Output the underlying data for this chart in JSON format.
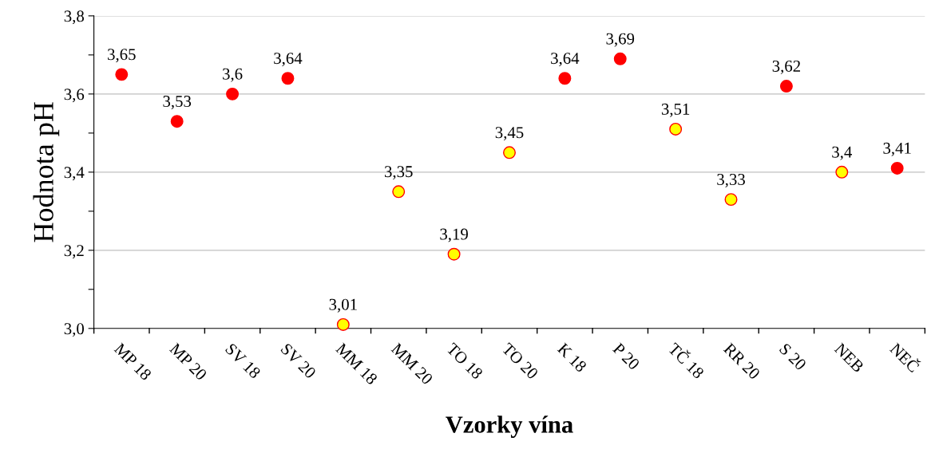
{
  "chart_data": {
    "type": "scatter",
    "xlabel": "Vzorky vína",
    "ylabel": "Hodnota pH",
    "categories": [
      "MP 18",
      "MP 20",
      "SV 18",
      "SV 20",
      "MM 18",
      "MM 20",
      "TO 18",
      "TO 20",
      "K 18",
      "P 20",
      "TČ 18",
      "RR 20",
      "S 20",
      "NEB",
      "NEČ"
    ],
    "values": [
      3.65,
      3.53,
      3.6,
      3.64,
      3.01,
      3.35,
      3.19,
      3.45,
      3.64,
      3.69,
      3.51,
      3.33,
      3.62,
      3.4,
      3.41
    ],
    "colors": [
      "#ff0000",
      "#ff0000",
      "#ff0000",
      "#ff0000",
      "#ffff00",
      "#ffff00",
      "#ffff00",
      "#ffff00",
      "#ff0000",
      "#ff0000",
      "#ffff00",
      "#ffff00",
      "#ff0000",
      "#ffff00",
      "#ff0000"
    ],
    "value_labels": [
      "3,65",
      "3,53",
      "3,6",
      "3,64",
      "3,01",
      "3,35",
      "3,19",
      "3,45",
      "3,64",
      "3,69",
      "3,51",
      "3,33",
      "3,62",
      "3,4",
      "3,41"
    ],
    "ylim": [
      3.0,
      3.8
    ],
    "yticks": [
      {
        "value": 3.0,
        "label": "3,0"
      },
      {
        "value": 3.1,
        "label": null
      },
      {
        "value": 3.2,
        "label": "3,2"
      },
      {
        "value": 3.3,
        "label": null
      },
      {
        "value": 3.4,
        "label": "3,4"
      },
      {
        "value": 3.5,
        "label": null
      },
      {
        "value": 3.6,
        "label": "3,6"
      },
      {
        "value": 3.7,
        "label": null
      },
      {
        "value": 3.8,
        "label": "3,8"
      }
    ],
    "grid": "y",
    "marker": "circle",
    "legend": false
  }
}
